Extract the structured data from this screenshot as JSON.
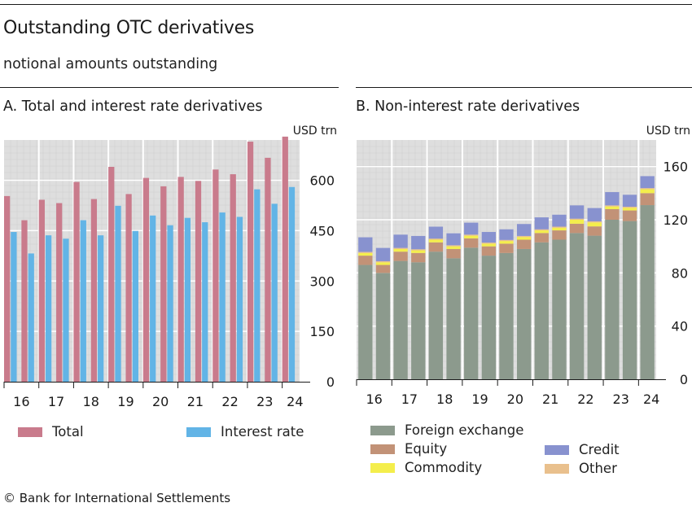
{
  "header": {
    "title": "Outstanding OTC derivatives",
    "subtitle": "notional amounts outstanding"
  },
  "footer": {
    "text": "© Bank for International Settlements"
  },
  "colors": {
    "total": "#c97b8c",
    "interest_rate": "#62b4e6",
    "foreign_exchange": "#8c9a8d",
    "equity": "#c29277",
    "commodity": "#f4ee4c",
    "other": "#e9c08d",
    "credit": "#8892cf",
    "plot_bg": "#dedede"
  },
  "chart_data": [
    {
      "type": "bar",
      "title": "A. Total and interest rate derivatives",
      "unit_label": "USD trn",
      "ylim": [
        0,
        720
      ],
      "yticks": [
        0,
        150,
        300,
        450,
        600
      ],
      "year_labels": [
        "16",
        "17",
        "18",
        "19",
        "20",
        "21",
        "22",
        "23",
        "24"
      ],
      "periods": [
        "16-H1",
        "16-H2",
        "17-H1",
        "17-H2",
        "18-H1",
        "18-H2",
        "19-H1",
        "19-H2",
        "20-H1",
        "20-H2",
        "21-H1",
        "21-H2",
        "22-H1",
        "22-H2",
        "23-H1",
        "23-H2",
        "24-H1"
      ],
      "series": [
        {
          "name": "Total",
          "values": [
            553,
            481,
            542,
            532,
            595,
            544,
            640,
            559,
            607,
            582,
            610,
            598,
            632,
            618,
            715,
            667,
            730
          ]
        },
        {
          "name": "Interest rate",
          "values": [
            446,
            382,
            436,
            426,
            481,
            436,
            524,
            449,
            495,
            466,
            488,
            475,
            504,
            491,
            573,
            530,
            580
          ]
        }
      ],
      "legend": [
        "Total",
        "Interest rate"
      ],
      "legend_position": "bottom"
    },
    {
      "type": "bar",
      "stacked": true,
      "title": "B. Non-interest rate derivatives",
      "unit_label": "USD trn",
      "ylim": [
        0,
        180
      ],
      "yticks": [
        0,
        40,
        80,
        120,
        160
      ],
      "year_labels": [
        "16",
        "17",
        "18",
        "19",
        "20",
        "21",
        "22",
        "23",
        "24"
      ],
      "periods": [
        "16-H1",
        "16-H2",
        "17-H1",
        "17-H2",
        "18-H1",
        "18-H2",
        "19-H1",
        "19-H2",
        "20-H1",
        "20-H2",
        "21-H1",
        "21-H2",
        "22-H1",
        "22-H2",
        "23-H1",
        "23-H2",
        "24-H1"
      ],
      "series": [
        {
          "name": "Foreign exchange",
          "values": [
            86,
            80,
            89,
            88,
            96,
            91,
            99,
            93,
            95,
            98,
            103,
            105,
            110,
            108,
            120,
            119,
            131
          ]
        },
        {
          "name": "Equity",
          "values": [
            7,
            6,
            7,
            7,
            7,
            7,
            7,
            7,
            7,
            7,
            7,
            7,
            7,
            7,
            8,
            8,
            9
          ]
        },
        {
          "name": "Commodity",
          "values": [
            2,
            2,
            2,
            2,
            2,
            2,
            2,
            2,
            2,
            2,
            2,
            2,
            3,
            3,
            2,
            2,
            3
          ]
        },
        {
          "name": "Other",
          "values": [
            0.8,
            0.8,
            0.8,
            0.8,
            0.8,
            0.8,
            0.8,
            0.8,
            0.8,
            0.8,
            0.8,
            0.8,
            0.8,
            0.8,
            0.8,
            0.8,
            0.8
          ]
        },
        {
          "name": "Credit",
          "values": [
            11,
            10,
            10,
            10,
            9,
            9,
            9,
            8,
            8,
            9,
            9,
            9,
            10,
            10,
            10,
            9,
            9
          ]
        }
      ],
      "legend": [
        "Foreign exchange",
        "Equity",
        "Commodity",
        "Credit",
        "Other"
      ],
      "legend_position": "bottom"
    }
  ]
}
